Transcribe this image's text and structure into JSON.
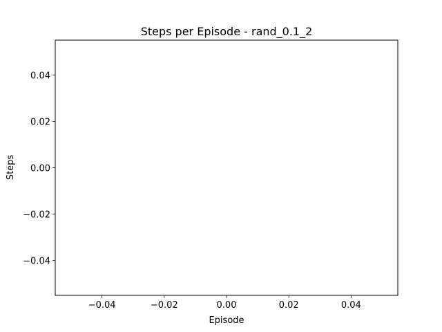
{
  "chart_data": {
    "type": "line",
    "title": "Steps per Episode - rand_0.1_2",
    "xlabel": "Episode",
    "ylabel": "Steps",
    "series": [
      {
        "values": []
      }
    ],
    "xlim": [
      -0.055,
      0.055
    ],
    "ylim": [
      -0.055,
      0.055
    ],
    "xticks": [
      -0.04,
      -0.02,
      0.0,
      0.02,
      0.04
    ],
    "yticks": [
      -0.04,
      -0.02,
      0.0,
      0.02,
      0.04
    ],
    "xtick_labels": [
      "−0.04",
      "−0.02",
      "0.00",
      "0.02",
      "0.04"
    ],
    "ytick_labels": [
      "−0.04",
      "−0.02",
      "0.00",
      "0.02",
      "0.04"
    ],
    "grid": false,
    "legend": false
  }
}
